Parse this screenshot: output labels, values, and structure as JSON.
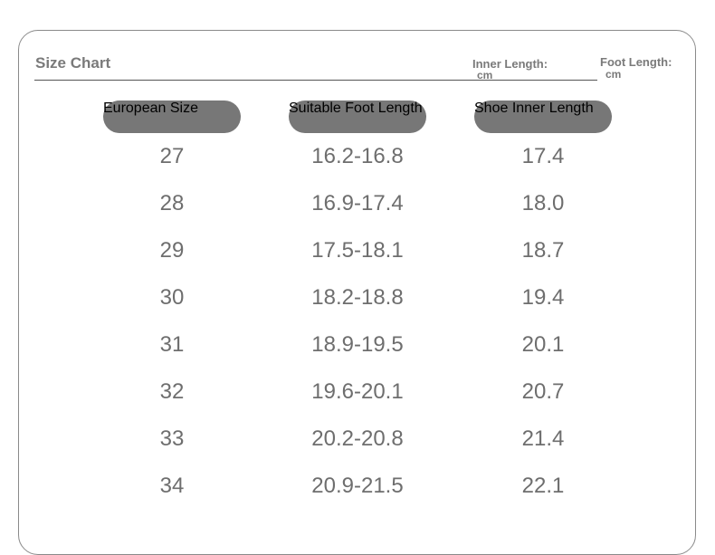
{
  "header": {
    "title": "Size Chart",
    "inner_length": {
      "label": "Inner Length:",
      "unit": "cm"
    },
    "foot_length": {
      "label": "Foot Length:",
      "unit": "cm"
    }
  },
  "table": {
    "columns": [
      "European Size",
      "Suitable Foot Length",
      "Shoe Inner Length"
    ],
    "rows": [
      [
        "27",
        "16.2-16.8",
        "17.4"
      ],
      [
        "28",
        "16.9-17.4",
        "18.0"
      ],
      [
        "29",
        "17.5-18.1",
        "18.7"
      ],
      [
        "30",
        "18.2-18.8",
        "19.4"
      ],
      [
        "31",
        "18.9-19.5",
        "20.1"
      ],
      [
        "32",
        "19.6-20.1",
        "20.7"
      ],
      [
        "33",
        "20.2-20.8",
        "21.4"
      ],
      [
        "34",
        "20.9-21.5",
        "22.1"
      ]
    ]
  }
}
